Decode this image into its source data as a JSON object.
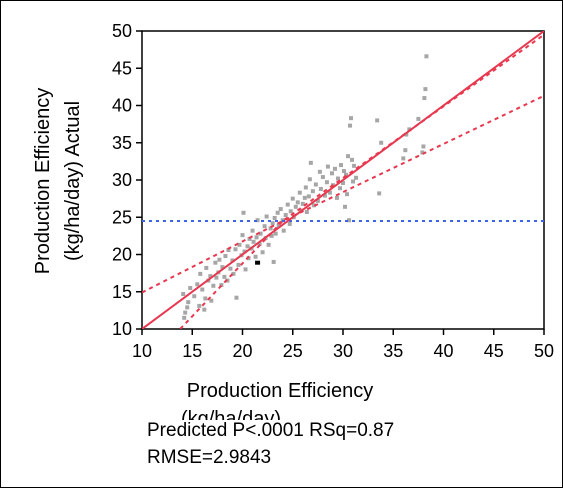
{
  "chart_data": {
    "type": "scatter",
    "title": "",
    "xlabel_lines": [
      "Production Efficiency",
      "(kg/ha/day)"
    ],
    "ylabel_lines": [
      "Production Efficiency",
      "(kg/ha/day) Actual"
    ],
    "xlim": [
      10,
      50
    ],
    "ylim": [
      10,
      50
    ],
    "xticks": [
      "10",
      "15",
      "20",
      "25",
      "30",
      "35",
      "40",
      "45",
      "50"
    ],
    "yticks": [
      "10",
      "15",
      "20",
      "25",
      "30",
      "35",
      "40",
      "45",
      "50"
    ],
    "mean_line_y": 24.5,
    "fit_line": [
      [
        10,
        10
      ],
      [
        50,
        50
      ]
    ],
    "confidence_upper": [
      [
        10,
        14.9
      ],
      [
        24,
        24.5
      ],
      [
        50,
        49.5
      ]
    ],
    "confidence_lower": [
      [
        13.8,
        10
      ],
      [
        24,
        24.5
      ],
      [
        50,
        41.3
      ]
    ],
    "colors": {
      "points": "#a6a6a6",
      "fit": "#e8384f",
      "mean": "#3c64e6",
      "highlight": "#000000"
    },
    "grid": false,
    "highlight_point": [
      21.5,
      18.9
    ],
    "points": [
      [
        14.2,
        11.5
      ],
      [
        14.3,
        12.2
      ],
      [
        14.5,
        12.9
      ],
      [
        14.6,
        13.6
      ],
      [
        14.1,
        14.7
      ],
      [
        14.8,
        15.5
      ],
      [
        15.2,
        14.4
      ],
      [
        15.5,
        16.0
      ],
      [
        15.7,
        13.1
      ],
      [
        15.8,
        17.4
      ],
      [
        16.0,
        15.3
      ],
      [
        16.2,
        12.6
      ],
      [
        16.3,
        14.1
      ],
      [
        16.4,
        18.2
      ],
      [
        16.6,
        16.5
      ],
      [
        16.8,
        17.1
      ],
      [
        16.9,
        13.8
      ],
      [
        17.1,
        15.8
      ],
      [
        17.3,
        18.9
      ],
      [
        17.4,
        16.9
      ],
      [
        17.6,
        17.6
      ],
      [
        17.7,
        19.3
      ],
      [
        17.9,
        15.9
      ],
      [
        18.0,
        18.3
      ],
      [
        18.2,
        17.0
      ],
      [
        18.3,
        19.8
      ],
      [
        18.5,
        16.5
      ],
      [
        18.6,
        20.6
      ],
      [
        18.8,
        18.1
      ],
      [
        19.0,
        19.2
      ],
      [
        19.1,
        17.4
      ],
      [
        19.3,
        20.7
      ],
      [
        19.4,
        14.2
      ],
      [
        19.6,
        18.6
      ],
      [
        19.7,
        21.3
      ],
      [
        19.9,
        19.9
      ],
      [
        20.0,
        22.6
      ],
      [
        20.1,
        25.6
      ],
      [
        20.2,
        20.4
      ],
      [
        20.3,
        18.0
      ],
      [
        20.5,
        21.1
      ],
      [
        20.6,
        19.5
      ],
      [
        20.7,
        22.1
      ],
      [
        20.9,
        20.8
      ],
      [
        21.0,
        23.2
      ],
      [
        21.1,
        21.7
      ],
      [
        21.3,
        19.7
      ],
      [
        21.4,
        22.3
      ],
      [
        21.5,
        24.6
      ],
      [
        21.7,
        21.4
      ],
      [
        21.8,
        22.8
      ],
      [
        22.0,
        20.3
      ],
      [
        22.2,
        23.8
      ],
      [
        22.3,
        22.2
      ],
      [
        22.4,
        25.1
      ],
      [
        22.6,
        21.3
      ],
      [
        22.8,
        23.5
      ],
      [
        22.9,
        22.5
      ],
      [
        23.0,
        24.2
      ],
      [
        23.1,
        19.0
      ],
      [
        23.2,
        24.9
      ],
      [
        23.3,
        22.8
      ],
      [
        23.5,
        25.6
      ],
      [
        23.6,
        23.9
      ],
      [
        23.8,
        26.1
      ],
      [
        24.0,
        24.6
      ],
      [
        24.1,
        23.2
      ],
      [
        24.3,
        25.3
      ],
      [
        24.5,
        26.7
      ],
      [
        24.7,
        24.1
      ],
      [
        24.8,
        25.8
      ],
      [
        25.0,
        27.5
      ],
      [
        25.1,
        25.0
      ],
      [
        25.3,
        26.4
      ],
      [
        25.5,
        27.0
      ],
      [
        25.7,
        28.3
      ],
      [
        25.8,
        25.9
      ],
      [
        26.0,
        26.8
      ],
      [
        26.2,
        27.6
      ],
      [
        26.3,
        29.0
      ],
      [
        26.4,
        25.7
      ],
      [
        26.6,
        27.8
      ],
      [
        26.7,
        30.1
      ],
      [
        26.8,
        32.3
      ],
      [
        27.0,
        28.5
      ],
      [
        27.1,
        26.6
      ],
      [
        27.3,
        29.4
      ],
      [
        27.5,
        27.2
      ],
      [
        27.7,
        31.1
      ],
      [
        27.8,
        28.8
      ],
      [
        28.0,
        30.4
      ],
      [
        28.2,
        27.9
      ],
      [
        28.4,
        29.7
      ],
      [
        28.5,
        31.8
      ],
      [
        28.7,
        28.3
      ],
      [
        28.9,
        30.9
      ],
      [
        29.0,
        29.3
      ],
      [
        29.2,
        31.5
      ],
      [
        29.4,
        27.6
      ],
      [
        29.5,
        30.2
      ],
      [
        29.7,
        28.9
      ],
      [
        29.8,
        32.0
      ],
      [
        30.0,
        29.6
      ],
      [
        30.1,
        31.2
      ],
      [
        30.2,
        26.4
      ],
      [
        30.3,
        30.7
      ],
      [
        30.4,
        28.1
      ],
      [
        30.5,
        33.2
      ],
      [
        30.6,
        24.6
      ],
      [
        30.7,
        37.3
      ],
      [
        30.8,
        38.3
      ],
      [
        30.9,
        32.7
      ],
      [
        31.0,
        29.8
      ],
      [
        31.1,
        31.9
      ],
      [
        31.3,
        30.3
      ],
      [
        33.4,
        38.0
      ],
      [
        33.6,
        28.2
      ],
      [
        33.8,
        35.0
      ],
      [
        36.0,
        32.9
      ],
      [
        36.2,
        34.0
      ],
      [
        36.3,
        36.1
      ],
      [
        36.6,
        36.8
      ],
      [
        37.5,
        38.2
      ],
      [
        37.9,
        33.7
      ],
      [
        38.0,
        34.5
      ],
      [
        38.1,
        41.0
      ],
      [
        38.2,
        42.2
      ],
      [
        38.3,
        46.6
      ]
    ]
  },
  "stats": {
    "line1": "Predicted P<.0001 RSq=0.87",
    "line2": "RMSE=2.9843"
  }
}
